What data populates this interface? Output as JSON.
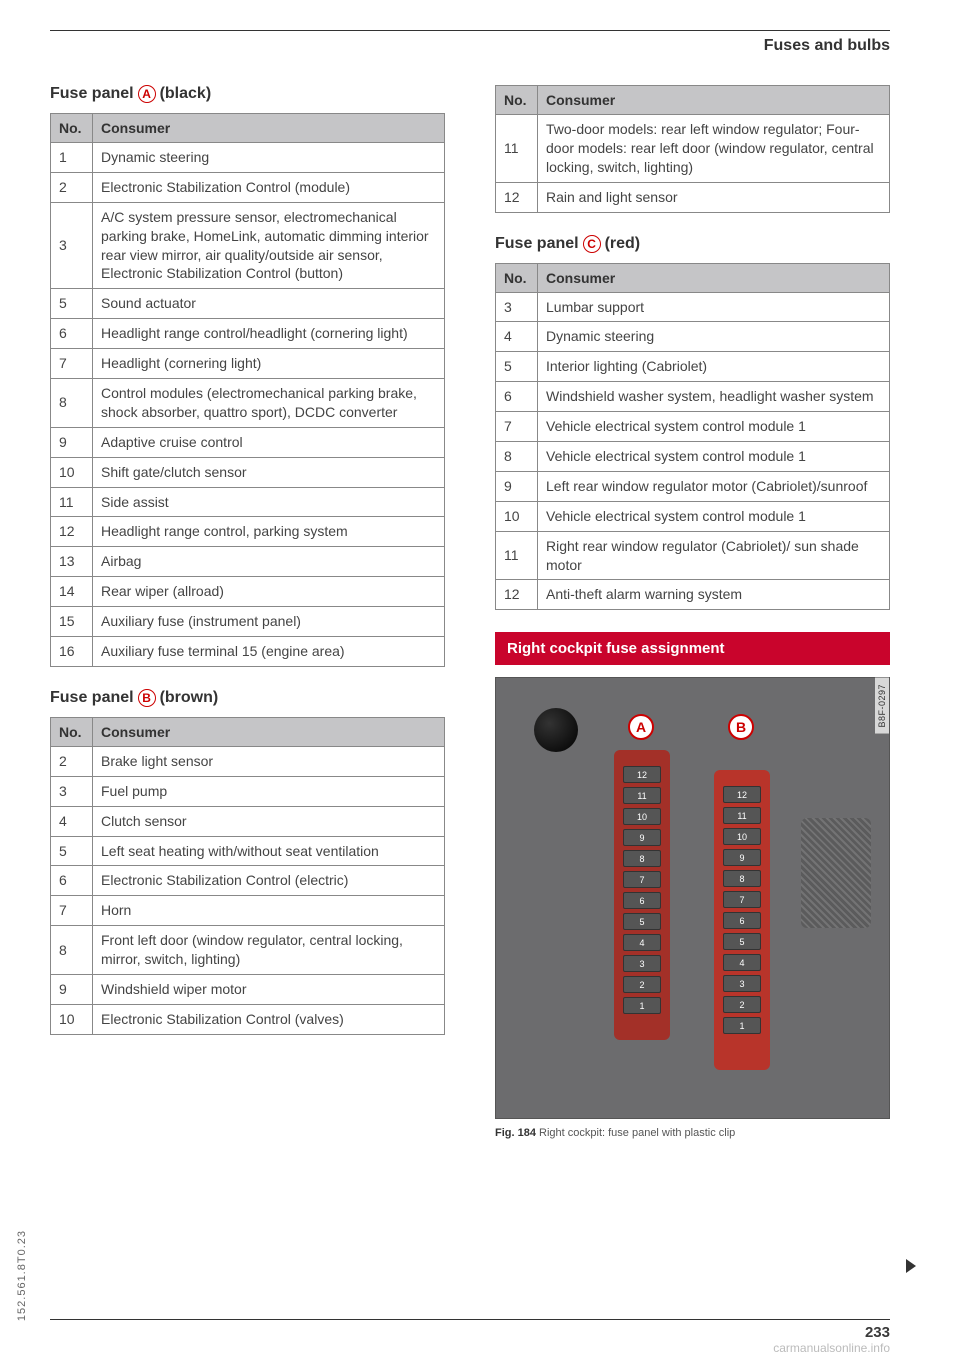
{
  "header": {
    "title": "Fuses and bulbs"
  },
  "panelA": {
    "title_pre": "Fuse panel",
    "letter": "A",
    "title_post": "(black)",
    "columns": [
      "No.",
      "Consumer"
    ],
    "rows": [
      [
        "1",
        "Dynamic steering"
      ],
      [
        "2",
        "Electronic Stabilization Control (module)"
      ],
      [
        "3",
        "A/C system pressure sensor, electromechanical parking brake, HomeLink, automatic dimming interior rear view mirror, air quality/outside air sensor, Electronic Stabilization Control (button)"
      ],
      [
        "5",
        "Sound actuator"
      ],
      [
        "6",
        "Headlight range control/headlight (cornering light)"
      ],
      [
        "7",
        "Headlight (cornering light)"
      ],
      [
        "8",
        "Control modules (electromechanical parking brake, shock absorber, quattro sport), DCDC converter"
      ],
      [
        "9",
        "Adaptive cruise control"
      ],
      [
        "10",
        "Shift gate/clutch sensor"
      ],
      [
        "11",
        "Side assist"
      ],
      [
        "12",
        "Headlight range control, parking system"
      ],
      [
        "13",
        "Airbag"
      ],
      [
        "14",
        "Rear wiper (allroad)"
      ],
      [
        "15",
        "Auxiliary fuse (instrument panel)"
      ],
      [
        "16",
        "Auxiliary fuse terminal 15 (engine area)"
      ]
    ]
  },
  "panelB": {
    "title_pre": "Fuse panel",
    "letter": "B",
    "title_post": "(brown)",
    "columns": [
      "No.",
      "Consumer"
    ],
    "rows": [
      [
        "2",
        "Brake light sensor"
      ],
      [
        "3",
        "Fuel pump"
      ],
      [
        "4",
        "Clutch sensor"
      ],
      [
        "5",
        "Left seat heating with/without seat ventilation"
      ],
      [
        "6",
        "Electronic Stabilization Control (electric)"
      ],
      [
        "7",
        "Horn"
      ],
      [
        "8",
        "Front left door (window regulator, central locking, mirror, switch, lighting)"
      ],
      [
        "9",
        "Windshield wiper motor"
      ],
      [
        "10",
        "Electronic Stabilization Control (valves)"
      ]
    ]
  },
  "panelB_cont": {
    "columns": [
      "No.",
      "Consumer"
    ],
    "rows": [
      [
        "11",
        "Two-door models: rear left window regulator; Four-door models: rear left door (window regulator, central locking, switch, lighting)"
      ],
      [
        "12",
        "Rain and light sensor"
      ]
    ]
  },
  "panelC": {
    "title_pre": "Fuse panel",
    "letter": "C",
    "title_post": "(red)",
    "columns": [
      "No.",
      "Consumer"
    ],
    "rows": [
      [
        "3",
        "Lumbar support"
      ],
      [
        "4",
        "Dynamic steering"
      ],
      [
        "5",
        "Interior lighting (Cabriolet)"
      ],
      [
        "6",
        "Windshield washer system, headlight washer system"
      ],
      [
        "7",
        "Vehicle electrical system control module 1"
      ],
      [
        "8",
        "Vehicle electrical system control module 1"
      ],
      [
        "9",
        "Left rear window regulator motor (Cabriolet)/sunroof"
      ],
      [
        "10",
        "Vehicle electrical system control module 1"
      ],
      [
        "11",
        "Right rear window regulator (Cabriolet)/ sun shade motor"
      ],
      [
        "12",
        "Anti-theft alarm warning system"
      ]
    ]
  },
  "banner": {
    "text": "Right cockpit fuse assignment"
  },
  "figure": {
    "code": "B8F-0297",
    "markerA": "A",
    "markerB": "B",
    "slotsA": [
      "12",
      "11",
      "10",
      "9",
      "8",
      "7",
      "6",
      "5",
      "4",
      "3",
      "2",
      "1"
    ],
    "slotsB": [
      "12",
      "11",
      "10",
      "9",
      "8",
      "7",
      "6",
      "5",
      "4",
      "3",
      "2",
      "1"
    ],
    "caption_bold": "Fig. 184",
    "caption_rest": "Right cockpit: fuse panel with plastic clip"
  },
  "side_code": "152.561.8T0.23",
  "page_number": "233",
  "watermark": "carmanualsonline.info"
}
